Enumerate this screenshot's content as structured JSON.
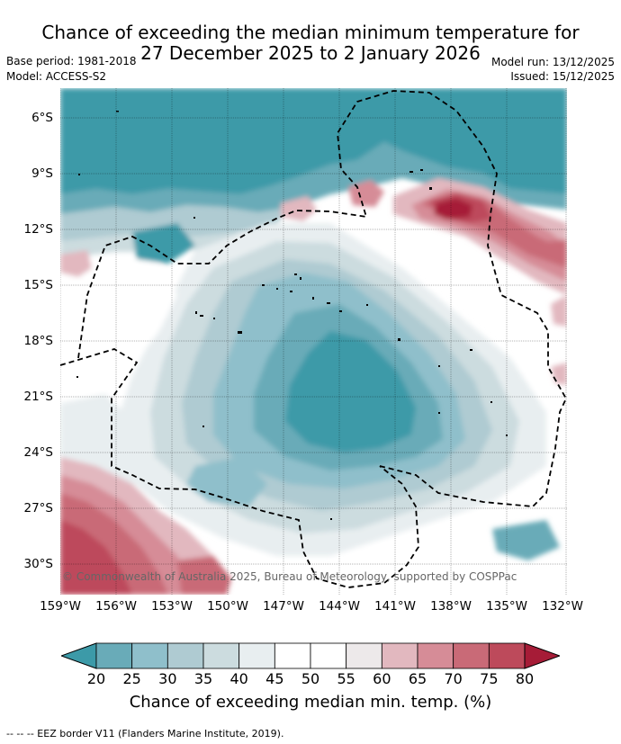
{
  "title": {
    "line1": "Chance of exceeding the median minimum temperature for",
    "line2": "27 December 2025 to 2 January 2026"
  },
  "meta": {
    "base_period": "Base period: 1981-2018",
    "model": "Model: ACCESS-S2",
    "model_run": "Model run: 13/12/2025",
    "issued": "Issued: 15/12/2025"
  },
  "map": {
    "copyright": "© Commonwealth of Australia 2025, Bureau of Meteorology, supported by COSPPac",
    "lat_ticks": [
      "6°S",
      "9°S",
      "12°S",
      "15°S",
      "18°S",
      "21°S",
      "24°S",
      "27°S",
      "30°S"
    ],
    "lon_ticks": [
      "159°W",
      "156°W",
      "153°W",
      "150°W",
      "147°W",
      "144°W",
      "141°W",
      "138°W",
      "135°W",
      "132°W"
    ],
    "colors": {
      "below_20": "#3c9aa8",
      "b20_25": "#69abb8",
      "b25_30": "#8fbfcb",
      "b30_35": "#afcbd2",
      "b35_40": "#ccdcdf",
      "b40_45": "#e8eef0",
      "b45_55": "#ffffff",
      "b55_60": "#ede9ea",
      "b60_65": "#e2b8bf",
      "b65_70": "#d68c97",
      "b70_75": "#c96a77",
      "b75_80": "#bd4a5b",
      "above_80": "#a61c37"
    }
  },
  "colorbar": {
    "ticks": [
      "20",
      "25",
      "30",
      "35",
      "40",
      "45",
      "50",
      "55",
      "60",
      "65",
      "70",
      "75",
      "80"
    ],
    "title": "Chance of exceeding median min. temp. (%)",
    "colors": [
      "#69abb8",
      "#8fbfcb",
      "#afcbd2",
      "#ccdcdf",
      "#e8eef0",
      "#ffffff",
      "#ffffff",
      "#ede9ea",
      "#e2b8bf",
      "#d68c97",
      "#c96a77",
      "#bd4a5b"
    ],
    "low_arrow_color": "#3c9aa8",
    "high_arrow_color": "#a61c37"
  },
  "footnote": "--  --  -- EEZ border V11 (Flanders Marine Institute, 2019)."
}
